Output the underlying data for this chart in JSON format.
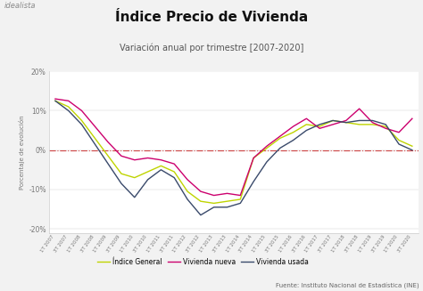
{
  "title": "Índice Precio de Vivienda",
  "subtitle": "Variación anual por trimestre [2007-2020]",
  "ylabel": "Porcentaje de evolución",
  "source": "Fuente: Instituto Nacional de Estadística (INE)",
  "watermark": "idealista",
  "background_color": "#f2f2f2",
  "background_plot": "#ffffff",
  "color_general": "#bfd400",
  "color_nueva": "#cc006e",
  "color_usada": "#3a4a6b",
  "legend_labels": [
    "Índice General",
    "Vivienda nueva",
    "Vivienda usada"
  ],
  "ylim": [
    -21,
    20
  ],
  "yticks": [
    -20,
    -10,
    0,
    10,
    20
  ],
  "xtick_labels": [
    "1T 2007",
    "3T 2007",
    "1T 2008",
    "3T 2008",
    "1T 2009",
    "3T 2009",
    "1T 2010",
    "3T 2010",
    "1T 2011",
    "3T 2011",
    "1T 2012",
    "3T 2012",
    "1T 2013",
    "3T 2013",
    "1T 2014",
    "3T 2014",
    "1T 2015",
    "3T 2015",
    "1T 2016",
    "3T 2016",
    "1T 2017",
    "3T 2017",
    "1T 2018",
    "3T 2018",
    "1T 2019",
    "3T 2019",
    "1T 2020",
    "3T 2020"
  ],
  "indice_general": [
    12.5,
    11.0,
    7.5,
    3.0,
    -1.5,
    -6.0,
    -7.0,
    -5.5,
    -4.0,
    -5.5,
    -10.5,
    -13.0,
    -13.5,
    -13.0,
    -12.5,
    -2.0,
    0.5,
    3.0,
    4.5,
    6.5,
    6.0,
    7.5,
    7.0,
    6.5,
    6.5,
    6.0,
    2.5,
    1.0
  ],
  "vivienda_nueva": [
    13.0,
    12.5,
    10.0,
    6.0,
    2.0,
    -1.5,
    -2.5,
    -2.0,
    -2.5,
    -3.5,
    -7.5,
    -10.5,
    -11.5,
    -11.0,
    -11.5,
    -2.0,
    1.0,
    3.5,
    6.0,
    8.0,
    5.5,
    6.5,
    7.5,
    10.5,
    7.0,
    5.5,
    4.5,
    8.0
  ],
  "vivienda_usada": [
    12.5,
    10.0,
    6.5,
    1.5,
    -3.5,
    -8.5,
    -12.0,
    -7.5,
    -5.0,
    -7.0,
    -12.5,
    -16.5,
    -14.5,
    -14.5,
    -13.5,
    -8.0,
    -3.0,
    0.5,
    2.5,
    5.0,
    6.5,
    7.5,
    7.0,
    7.5,
    7.5,
    6.5,
    1.5,
    0.0
  ]
}
